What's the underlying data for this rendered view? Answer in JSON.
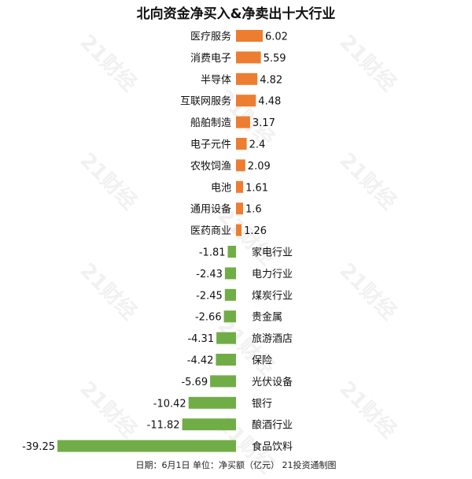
{
  "watermark": "21财经",
  "chart_data": {
    "type": "bar",
    "orientation": "horizontal",
    "title": "北向资金净买入&净卖出十大行业",
    "footer": "日期：6月1日 单位：净买额（亿元） 21投资通制图",
    "positive_color": "#ED7D31",
    "negative_color": "#70AD47",
    "categories": [
      "医疗服务",
      "消费电子",
      "半导体",
      "互联网服务",
      "船舶制造",
      "电子元件",
      "农牧饲渔",
      "电池",
      "通用设备",
      "医药商业",
      "家电行业",
      "电力行业",
      "煤炭行业",
      "贵金属",
      "旅游酒店",
      "保险",
      "光伏设备",
      "银行",
      "酿酒行业",
      "食品饮料"
    ],
    "values": [
      6.02,
      5.59,
      4.82,
      4.48,
      3.17,
      2.4,
      2.09,
      1.61,
      1.6,
      1.26,
      -1.81,
      -2.43,
      -2.45,
      -2.66,
      -4.31,
      -4.42,
      -5.69,
      -10.42,
      -11.82,
      -39.25
    ],
    "value_labels": [
      "6.02",
      "5.59",
      "4.82",
      "4.48",
      "3.17",
      "2.4",
      "2.09",
      "1.61",
      "1.6",
      "1.26",
      "-1.81",
      "-2.43",
      "-2.45",
      "-2.66",
      "-4.31",
      "-4.42",
      "-5.69",
      "-10.42",
      "-11.82",
      "-39.25"
    ],
    "xlim": [
      -39.25,
      6.02
    ],
    "grid": false,
    "legend": "none"
  }
}
